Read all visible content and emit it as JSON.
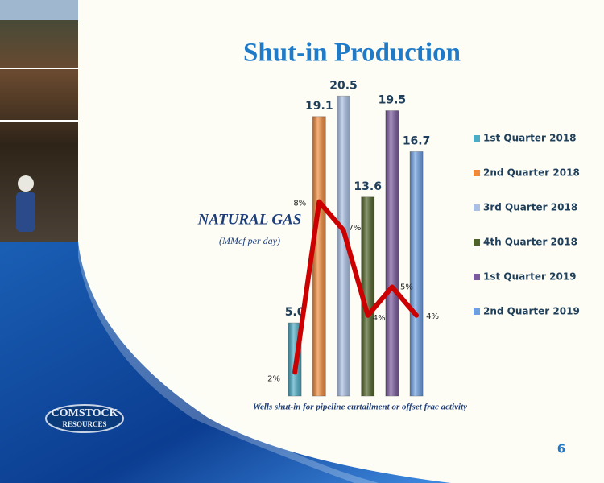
{
  "chart_data": {
    "type": "bar",
    "title": "Shut-in Production",
    "ylabel": "NATURAL GAS",
    "ylabel_units": "(MMcf per day)",
    "note": "Wells shut-in for pipeline curtailment or offset frac activity",
    "page_number": "6",
    "logo": [
      "COMSTOCK",
      "RESOURCES"
    ],
    "categories": [
      "1st Quarter 2018",
      "2nd Quarter 2018",
      "3rd Quarter 2018",
      "4th Quarter 2018",
      "1st Quarter 2019",
      "2nd Quarter 2019"
    ],
    "colors": [
      "#4bacc6",
      "#f08a3a",
      "#a9c0e4",
      "#4f6228",
      "#7a5a9e",
      "#6e9fe3"
    ],
    "values": [
      5.0,
      19.1,
      20.5,
      13.6,
      19.5,
      16.7
    ],
    "value_labels": [
      "5.0",
      "19.1",
      "20.5",
      "13.6",
      "19.5",
      "16.7"
    ],
    "ylim": [
      0,
      22.5
    ],
    "line": {
      "color": "#cc0000",
      "axis": "y2",
      "values": [
        2,
        8,
        7,
        4,
        5,
        4
      ],
      "value_labels": [
        "2%",
        "8%",
        "7%",
        "4%",
        "5%",
        "4%"
      ]
    },
    "y2lim": [
      1.16,
      12.75
    ],
    "legend": "right"
  }
}
